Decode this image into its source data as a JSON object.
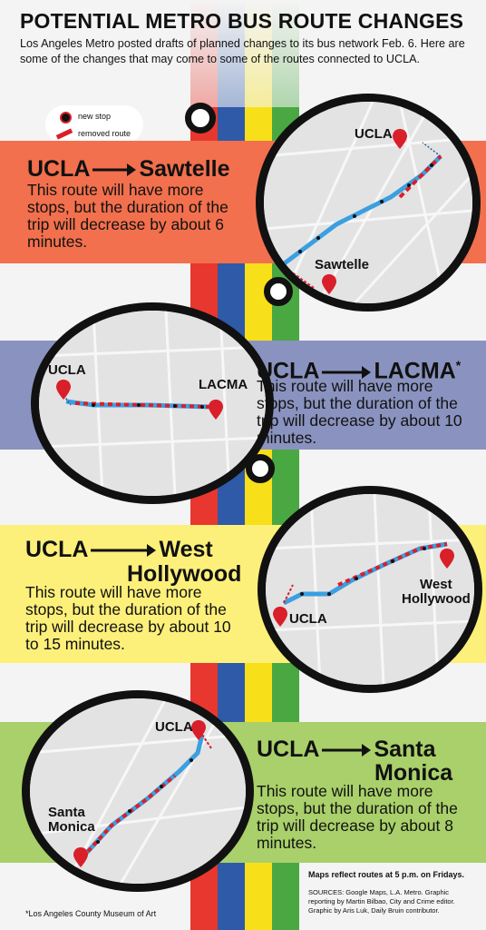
{
  "header": {
    "title": "POTENTIAL METRO BUS ROUTE CHANGES",
    "subtitle": "Los Angeles Metro posted drafts of planned changes to its bus network Feb. 6. Here are some of the changes that may come to some of the routes connected to UCLA."
  },
  "legend": {
    "new_stop": "new stop",
    "removed_route": "removed route"
  },
  "colors": {
    "orange": "#f2704d",
    "blue": "#8a93bf",
    "yellow": "#fdf07a",
    "green": "#a9d06a",
    "red_stripe": "#e8372e",
    "blue_stripe": "#2e5aa8",
    "yellow_stripe": "#f7e01a",
    "green_stripe": "#4aa842",
    "route": "#3b9fe0"
  },
  "routes": [
    {
      "from": "UCLA",
      "to": "Sawtelle",
      "desc": "This route will have more stops, but the duration of the trip will decrease by about 6 minutes.",
      "map_from": "UCLA",
      "map_to": "Sawtelle"
    },
    {
      "from": "UCLA",
      "to": "LACMA",
      "note_mark": "*",
      "desc": "This route will have more stops, but the duration of the trip will decrease by about 10 minutes.",
      "map_from": "UCLA",
      "map_to": "LACMA"
    },
    {
      "from": "UCLA",
      "to_line1": "West",
      "to_line2": "Hollywood",
      "desc": "This route will have more stops, but the duration of the trip will decrease by about 10 to 15 minutes.",
      "map_from": "UCLA",
      "map_to_line1": "West",
      "map_to_line2": "Hollywood"
    },
    {
      "from": "UCLA",
      "to_line1": "Santa",
      "to_line2": "Monica",
      "desc": "This route will have more stops, but the duration of the trip will decrease by about 8 minutes.",
      "map_from": "UCLA",
      "map_to_line1": "Santa",
      "map_to_line2": "Monica"
    }
  ],
  "footer": {
    "note": "Maps reflect routes at 5 p.m. on Fridays.",
    "sources": "SOURCES: Google Maps, L.A. Metro. Graphic reporting by Martin Bilbao, City and Crime editor. Graphic by Aris Luk, Daily Bruin contributor.",
    "footnote": "*Los Angeles County Museum of Art"
  }
}
